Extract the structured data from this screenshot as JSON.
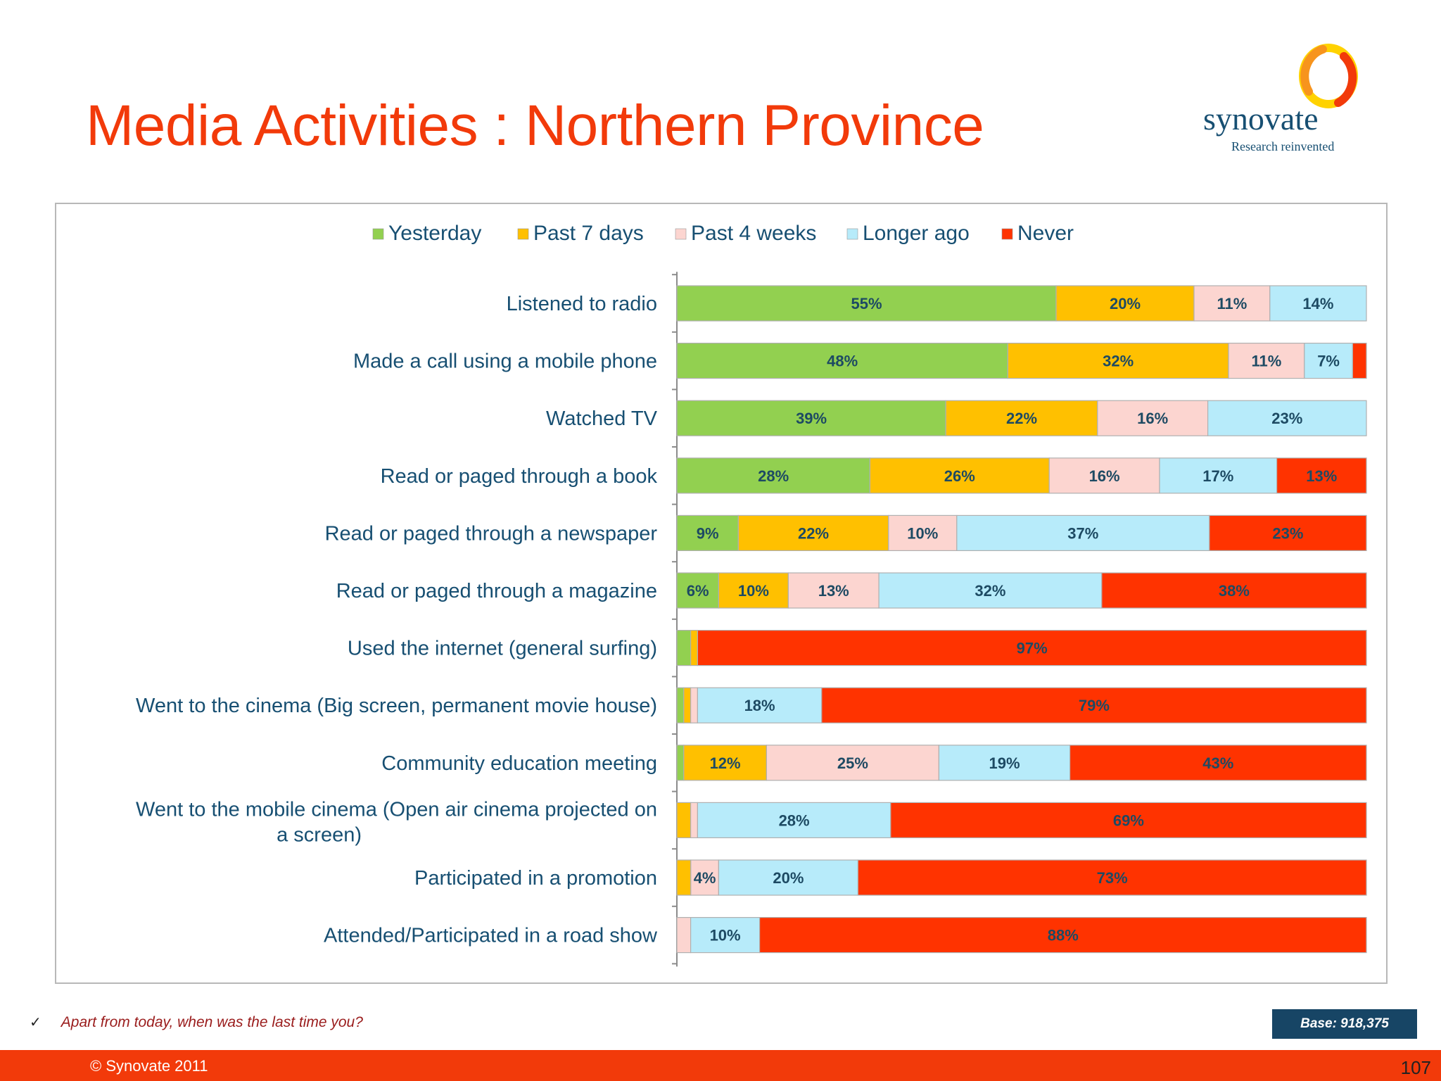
{
  "slide": {
    "title": "Media Activities : Northern Province",
    "logo": {
      "name": "synovate",
      "tagline": "Research reinvented",
      "icon": "synovate-ring-icon"
    },
    "footnote": {
      "check_icon": "✓",
      "text": "Apart from today, when was the last time you?"
    },
    "base": "Base: 918,375",
    "copyright": "© Synovate 2011",
    "page_number": "107"
  },
  "colors": {
    "title": "#f23a0a",
    "label_text": "#174f72",
    "footer": "#f23a0a",
    "base_box": "#174565"
  },
  "chart_data": {
    "type": "bar",
    "orientation": "horizontal",
    "stacked": true,
    "legend_position": "top",
    "grid": false,
    "xlim": [
      0,
      100
    ],
    "categories": [
      "Listened to radio",
      "Made a call using a mobile phone",
      "Watched TV",
      "Read or paged through a book",
      "Read or paged through a newspaper",
      "Read or paged through a magazine",
      "Used the internet (general surfing)",
      "Went to the cinema (Big screen, permanent movie house)",
      "Community education meeting",
      "Went to the mobile cinema (Open air cinema projected on a screen)",
      "Participated in a promotion",
      "Attended/Participated in a road show"
    ],
    "series": [
      {
        "name": "Yesterday",
        "color": "#92d050",
        "values": [
          55,
          48,
          39,
          28,
          9,
          6,
          2,
          1,
          1,
          0,
          0,
          0
        ]
      },
      {
        "name": "Past 7 days",
        "color": "#ffc000",
        "values": [
          20,
          32,
          22,
          26,
          22,
          10,
          1,
          1,
          12,
          2,
          2,
          0
        ]
      },
      {
        "name": "Past 4 weeks",
        "color": "#fcd5d0",
        "values": [
          11,
          11,
          16,
          16,
          10,
          13,
          0,
          1,
          25,
          1,
          4,
          2
        ]
      },
      {
        "name": "Longer ago",
        "color": "#b7ebfa",
        "values": [
          14,
          7,
          23,
          17,
          37,
          32,
          0,
          18,
          19,
          28,
          20,
          10
        ]
      },
      {
        "name": "Never",
        "color": "#ff3300",
        "values": [
          0,
          2,
          0,
          13,
          23,
          38,
          97,
          79,
          43,
          69,
          73,
          88
        ]
      }
    ],
    "data_labels": [
      [
        "55%",
        "20%",
        "11%",
        "14%",
        ""
      ],
      [
        "48%",
        "32%",
        "11%",
        "7%",
        ""
      ],
      [
        "39%",
        "22%",
        "16%",
        "23%",
        ""
      ],
      [
        "28%",
        "26%",
        "16%",
        "17%",
        "13%"
      ],
      [
        "9%",
        "22%",
        "10%",
        "37%",
        "23%"
      ],
      [
        "6%",
        "10%",
        "13%",
        "32%",
        "38%"
      ],
      [
        "",
        "",
        "",
        "",
        "97%"
      ],
      [
        "",
        "",
        "",
        "18%",
        "79%"
      ],
      [
        "",
        "12%",
        "25%",
        "19%",
        "43%"
      ],
      [
        "",
        "",
        "",
        "28%",
        "69%"
      ],
      [
        "",
        "",
        "4%",
        "20%",
        "73%"
      ],
      [
        "",
        "",
        "",
        "10%",
        "88%"
      ]
    ]
  }
}
